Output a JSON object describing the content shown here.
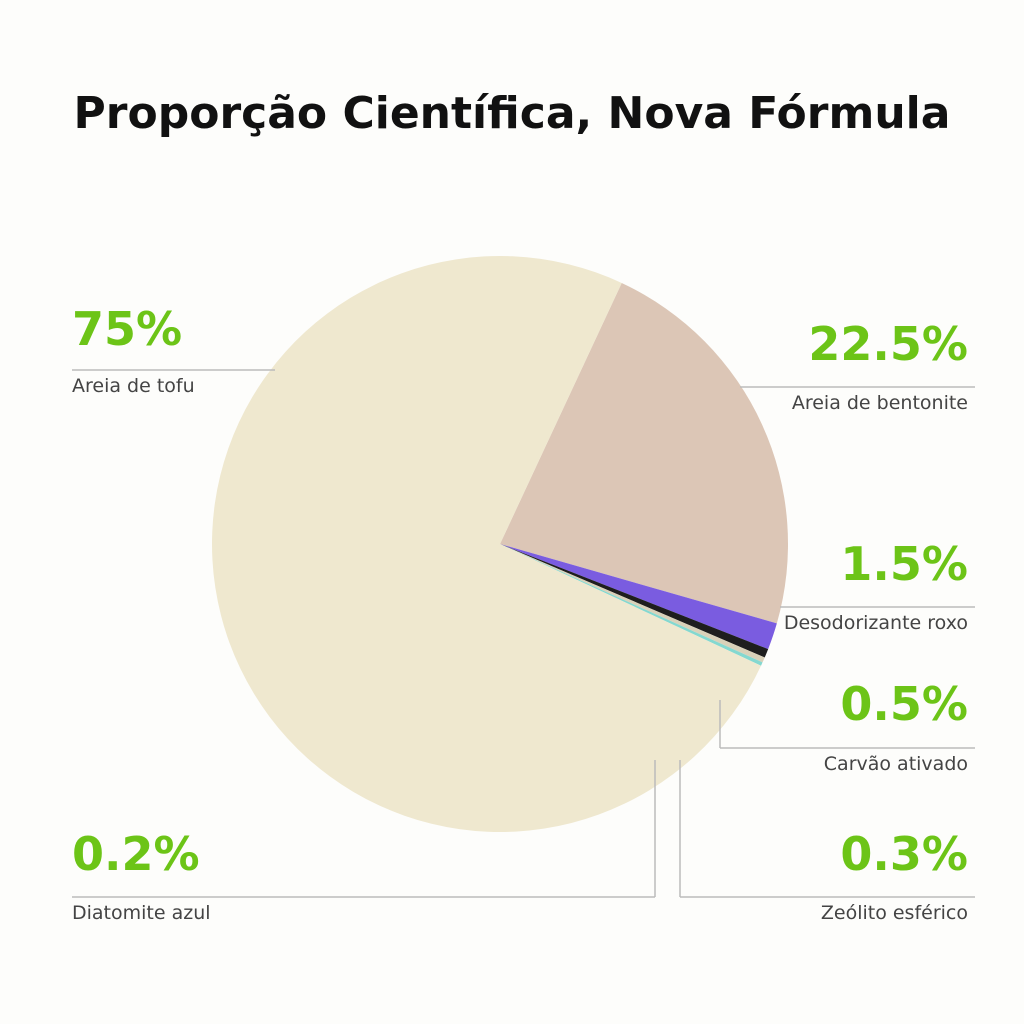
{
  "chart_data": {
    "type": "pie",
    "title": "Proporção Científica, Nova Fórmula",
    "categories": [
      "Areia de bentonite",
      "Desodorizante roxo",
      "Carvão ativado",
      "Zeólito esférico",
      "Diatomite azul",
      "Areia de tofu"
    ],
    "values": [
      22.5,
      1.5,
      0.5,
      0.3,
      0.2,
      75
    ],
    "value_labels": [
      "22.5%",
      "1.5%",
      "0.5%",
      "0.3%",
      "0.2%",
      "75%"
    ],
    "colors": [
      "#dcc6b6",
      "#7a5ce0",
      "#1e1e1e",
      "#d9d1b9",
      "#84d8d0",
      "#efe8cf"
    ],
    "label_color": "#6cc417"
  }
}
